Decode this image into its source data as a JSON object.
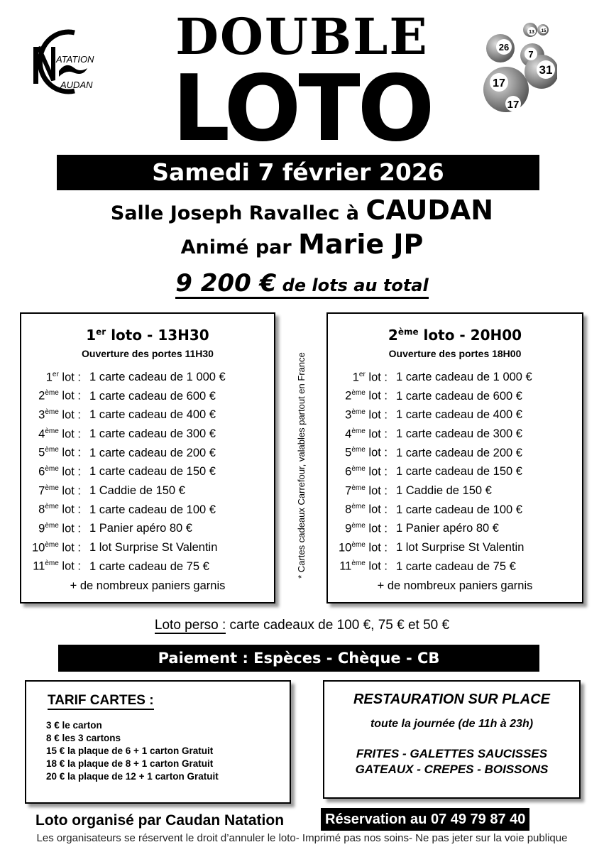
{
  "logo": {
    "brand": "NC",
    "line1": "ATATION",
    "line2": "AUDAN"
  },
  "header": {
    "title_line1": "DOUBLE",
    "title_line2": "LOTO",
    "balls": [
      "26",
      "13",
      "15",
      "7",
      "31",
      "17",
      "17"
    ]
  },
  "date": "Samedi 7 février 2026",
  "venue": {
    "prefix": "Salle Joseph Ravallec à ",
    "city": "CAUDAN"
  },
  "host": {
    "prefix": "Animé par ",
    "name": "Marie JP"
  },
  "total": {
    "amount": "9 200 €",
    "suffix": " de lots au total"
  },
  "sessions": [
    {
      "ord": "1",
      "sup": "er",
      "title": " loto - 13H30",
      "doors": "Ouverture des portes 11H30",
      "lots": [
        {
          "n": "1",
          "sup": "er",
          "d": "1 carte cadeau de 1 000 €"
        },
        {
          "n": "2",
          "sup": "ème",
          "d": "1 carte cadeau de 600 €"
        },
        {
          "n": "3",
          "sup": "ème",
          "d": "1 carte cadeau de 400 €"
        },
        {
          "n": "4",
          "sup": "ème",
          "d": "1 carte cadeau de 300 €"
        },
        {
          "n": "5",
          "sup": "ème",
          "d": "1 carte cadeau de 200 €"
        },
        {
          "n": "6",
          "sup": "ème",
          "d": "1 carte cadeau de 150 €"
        },
        {
          "n": "7",
          "sup": "ème",
          "d": "1 Caddie de 150 €"
        },
        {
          "n": "8",
          "sup": "ème",
          "d": "1 carte cadeau de 100 €"
        },
        {
          "n": "9",
          "sup": "ème",
          "d": "1 Panier apéro 80 €"
        },
        {
          "n": "10",
          "sup": "ème",
          "d": "1 lot Surprise St Valentin"
        },
        {
          "n": "11",
          "sup": "ème",
          "d": "1 carte cadeau de 75 €"
        }
      ],
      "more": "+ de nombreux paniers  garnis"
    },
    {
      "ord": "2",
      "sup": "ème",
      "title": " loto - 20H00",
      "doors": "Ouverture des portes 18H00",
      "lots": [
        {
          "n": "1",
          "sup": "er",
          "d": "1 carte cadeau de 1 000 €"
        },
        {
          "n": "2",
          "sup": "ème",
          "d": "1 carte cadeau de 600 €"
        },
        {
          "n": "3",
          "sup": "ème",
          "d": "1 carte cadeau de 400 €"
        },
        {
          "n": "4",
          "sup": "ème",
          "d": "1 carte cadeau de 300 €"
        },
        {
          "n": "5",
          "sup": "ème",
          "d": "1 carte cadeau de 200 €"
        },
        {
          "n": "6",
          "sup": "ème",
          "d": "1 carte cadeau de 150 €"
        },
        {
          "n": "7",
          "sup": "ème",
          "d": "1 Caddie de 150 €"
        },
        {
          "n": "8",
          "sup": "ème",
          "d": "1 carte cadeau de 100 €"
        },
        {
          "n": "9",
          "sup": "ème",
          "d": "1 Panier apéro 80 €"
        },
        {
          "n": "10",
          "sup": "ème",
          "d": "1 lot Surprise St Valentin"
        },
        {
          "n": "11",
          "sup": "ème",
          "d": "1 carte cadeau de 75 €"
        }
      ],
      "more": "+ de nombreux paniers  garnis"
    }
  ],
  "lot_suffix": " lot :",
  "vertical_note": "* Cartes cadeaux Carrefour, valables partout en France",
  "perso": {
    "label": "Loto perso :",
    "text": " carte cadeaux de 100 €, 75 € et 50 €"
  },
  "payment": "Paiement : Espèces - Chèque - CB",
  "tarif": {
    "title": "TARIF CARTES :",
    "items": [
      "3 € le carton",
      "8 € les 3 cartons",
      "15 € la plaque de 6 + 1 carton Gratuit",
      "18 € la plaque de 8 + 1 carton Gratuit",
      "20 € la plaque de 12 + 1 carton Gratuit"
    ]
  },
  "resto": {
    "title": "RESTAURATION SUR PLACE",
    "hours": "toute la journée (de 11h à 23h)",
    "food1": "FRITES - GALETTES SAUCISSES",
    "food2": "GATEAUX - CREPES - BOISSONS"
  },
  "organizer": "Loto organisé par Caudan Natation",
  "reservation": "Réservation au 07 49 79 87 40",
  "footer": "Les organisateurs se réservent le droit d’annuler le loto- Imprimé pas nos soins- Ne pas jeter sur la voie publique"
}
